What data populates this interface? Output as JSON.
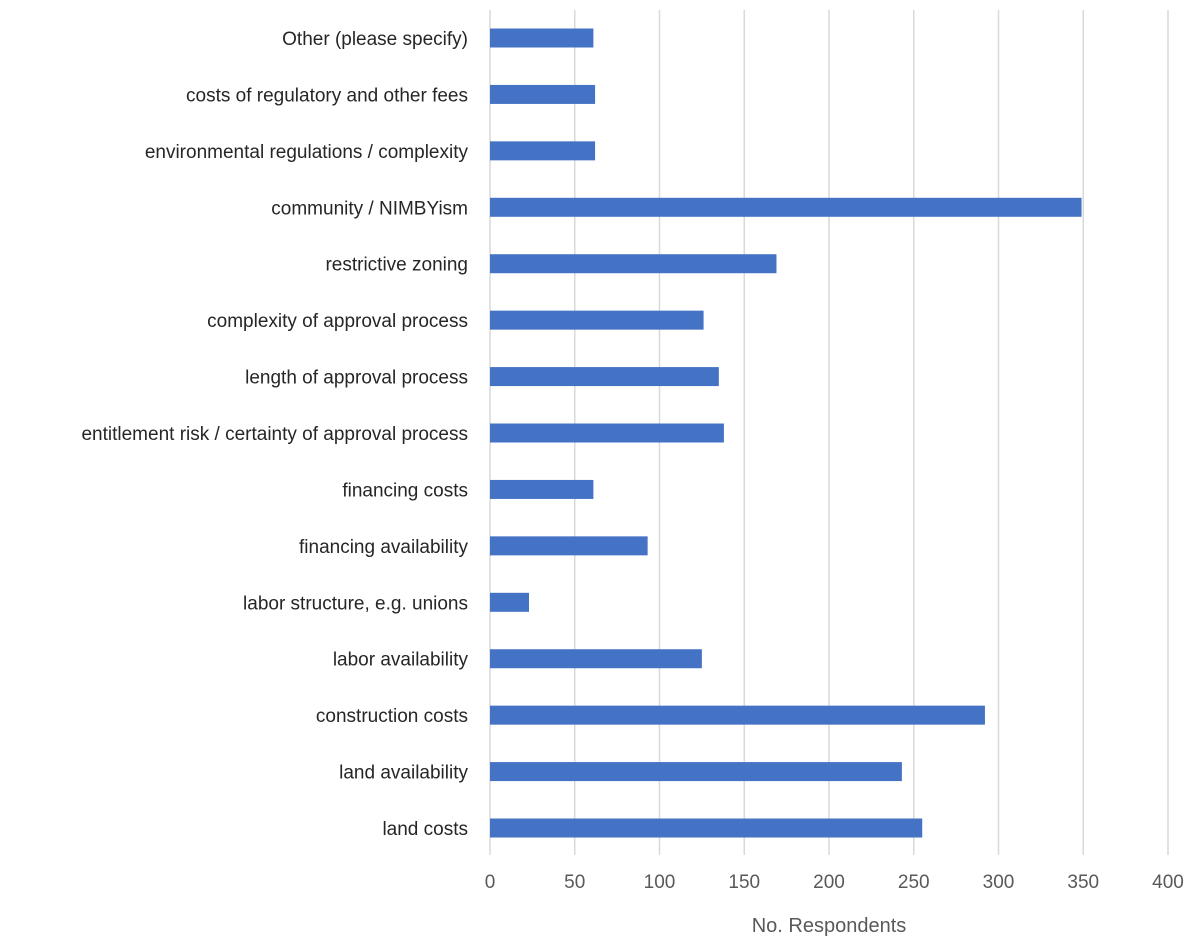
{
  "chart_data": {
    "type": "bar",
    "orientation": "horizontal",
    "title": "",
    "xlabel": "No. Respondents",
    "ylabel": "",
    "xlim": [
      0,
      400
    ],
    "xticks": [
      0,
      50,
      100,
      150,
      200,
      250,
      300,
      350,
      400
    ],
    "grid": true,
    "legend": "none",
    "bar_color": "#4472c4",
    "categories": [
      "Other (please specify)",
      "costs of regulatory and other fees",
      "environmental regulations / complexity",
      "community / NIMBYism",
      "restrictive zoning",
      "complexity of approval process",
      "length of approval process",
      "entitlement risk / certainty of approval process",
      "financing costs",
      "financing availability",
      "labor structure, e.g. unions",
      "labor availability",
      "construction costs",
      "land availability",
      "land costs"
    ],
    "values": [
      61,
      62,
      62,
      349,
      169,
      126,
      135,
      138,
      61,
      93,
      23,
      125,
      292,
      243,
      255
    ]
  }
}
